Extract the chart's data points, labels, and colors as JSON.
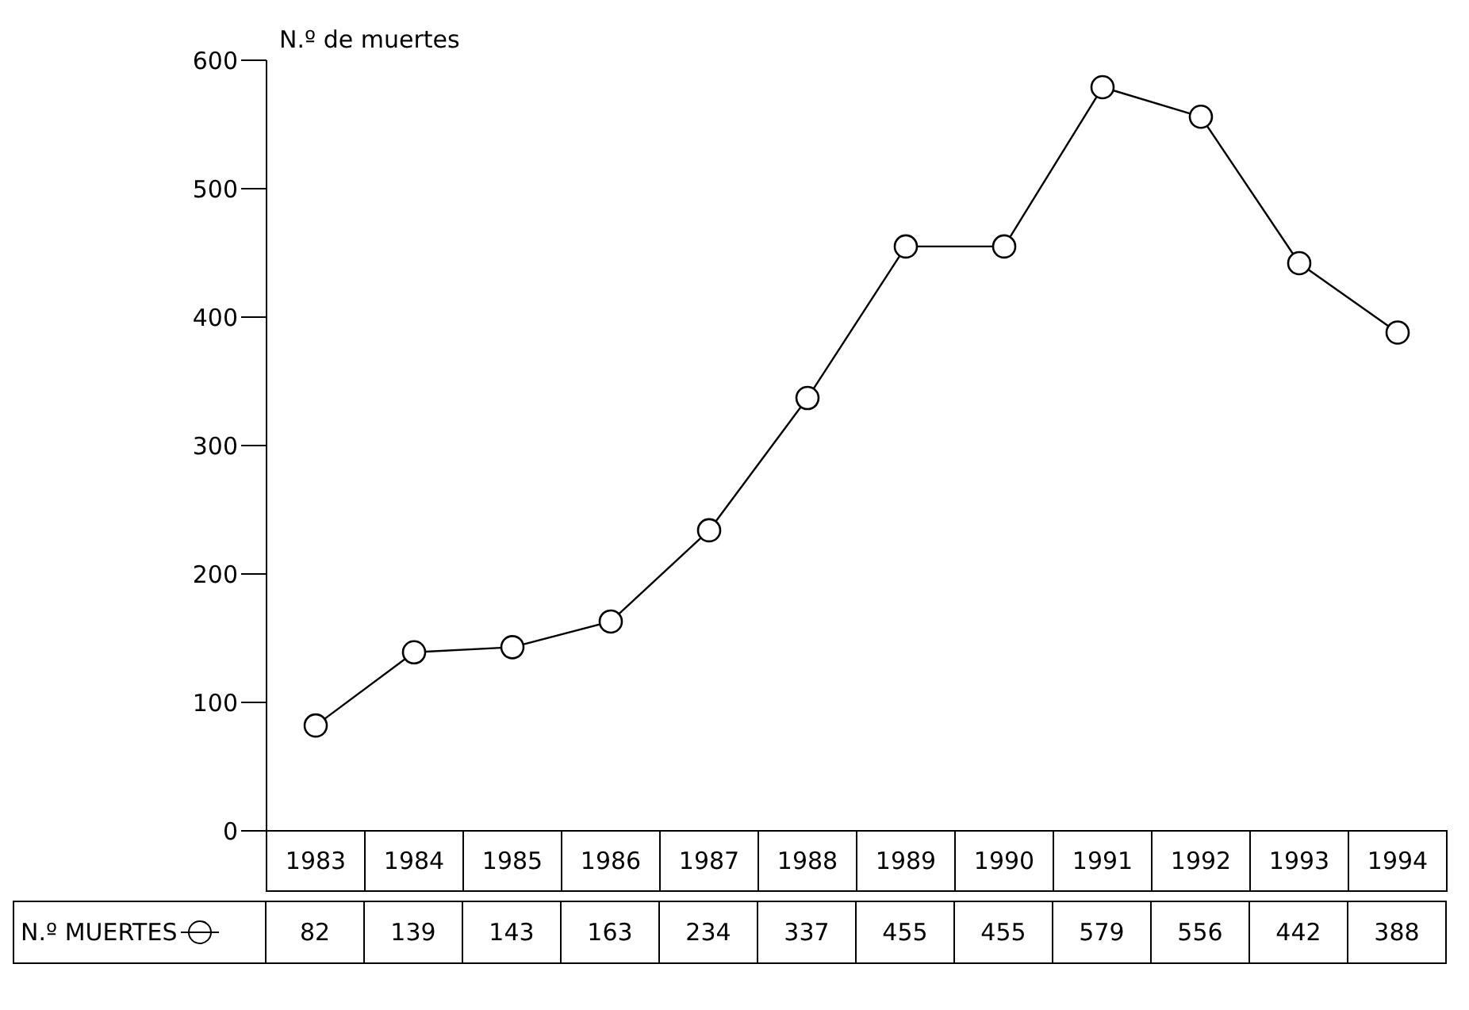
{
  "chart_data": {
    "type": "line",
    "ylabel": "N.º de muertes",
    "categories": [
      "1983",
      "1984",
      "1985",
      "1986",
      "1987",
      "1988",
      "1989",
      "1990",
      "1991",
      "1992",
      "1993",
      "1994"
    ],
    "series": [
      {
        "name": "N.º MUERTES",
        "color": "#000000",
        "values": [
          82,
          139,
          143,
          163,
          234,
          337,
          455,
          455,
          579,
          556,
          442,
          388
        ]
      }
    ],
    "ylim": [
      0,
      600
    ],
    "yticks": [
      0,
      100,
      200,
      300,
      400,
      500,
      600
    ],
    "legend": "bottom left",
    "marker": "circle",
    "line_style": "solid",
    "data_labels": true
  }
}
